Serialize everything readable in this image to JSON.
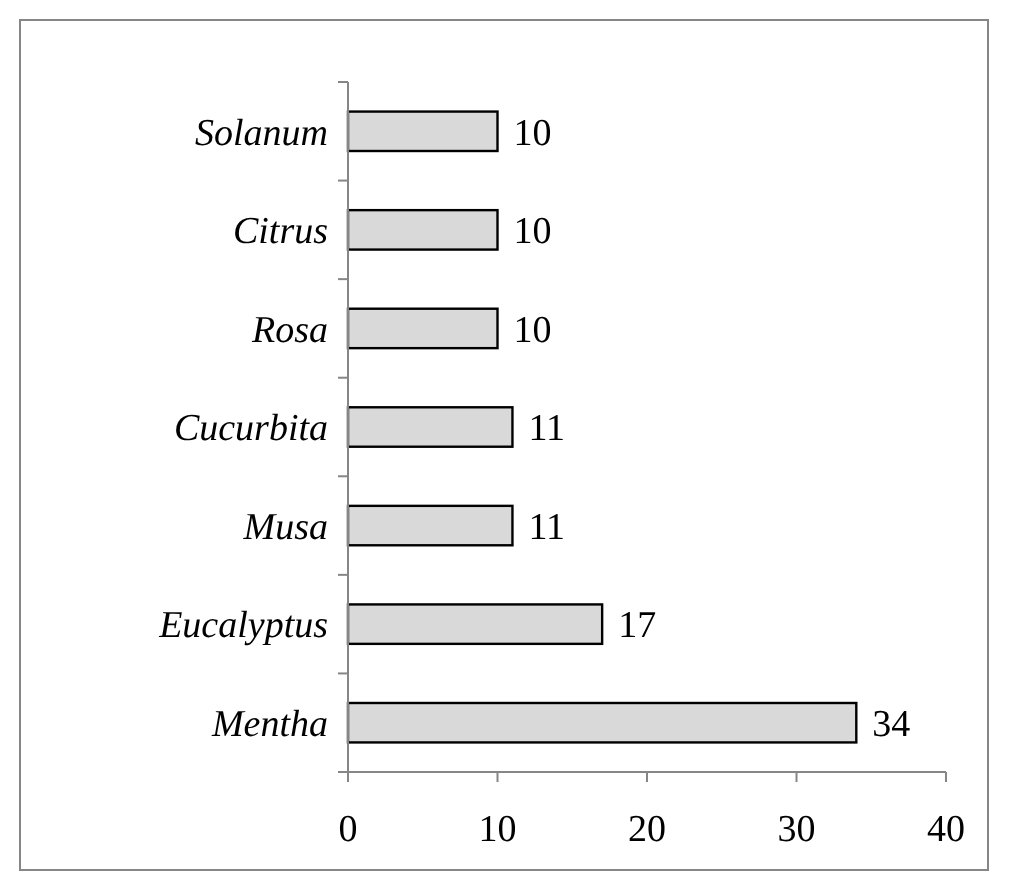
{
  "chart_data": {
    "type": "bar",
    "orientation": "horizontal",
    "categories": [
      "Solanum",
      "Citrus",
      "Rosa",
      "Cucurbita",
      "Musa",
      "Eucalyptus",
      "Mentha"
    ],
    "values": [
      10,
      10,
      10,
      11,
      11,
      17,
      34
    ],
    "color": "#d9d9d9",
    "xlim": [
      0,
      40
    ],
    "xticks": [
      0,
      10,
      20,
      30,
      40
    ],
    "data_labels": true,
    "grid": false
  }
}
